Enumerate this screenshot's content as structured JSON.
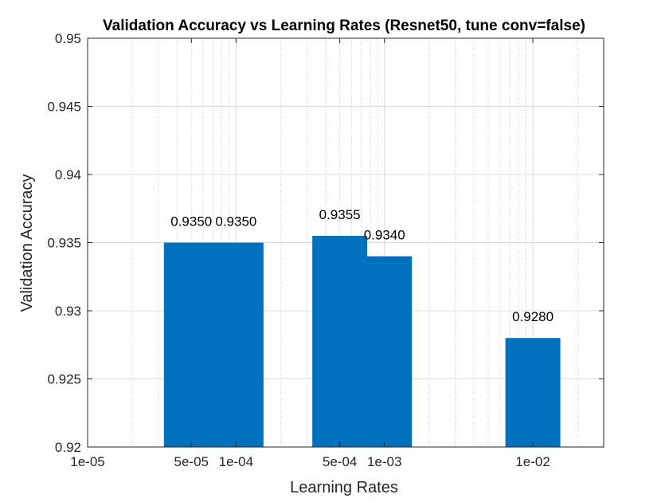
{
  "chart_data": {
    "type": "bar",
    "title": "Validation Accuracy vs Learning Rates (Resnet50, tune conv=false)",
    "xlabel": "Learning Rates",
    "ylabel": "Validation Accuracy",
    "x_scale": "log",
    "xlim": [
      1e-05,
      0.03
    ],
    "ylim": [
      0.92,
      0.95
    ],
    "grid": true,
    "minor_grid_x": true,
    "bar_color": "#0072BD",
    "x": [
      5e-05,
      0.0001,
      0.0005,
      0.001,
      0.01
    ],
    "values": [
      0.935,
      0.935,
      0.9355,
      0.934,
      0.928
    ],
    "data_labels": [
      "0.9350",
      "0.9350",
      "0.9355",
      "0.9340",
      "0.9280"
    ],
    "x_ticks": [
      1e-05,
      5e-05,
      0.0001,
      0.0005,
      0.001,
      0.01
    ],
    "x_tick_labels": [
      "1e-05",
      "5e-05",
      "1e-04",
      "5e-04",
      "1e-03",
      "1e-02"
    ],
    "y_ticks": [
      0.92,
      0.925,
      0.93,
      0.935,
      0.94,
      0.945,
      0.95
    ],
    "y_tick_labels": [
      "0.92",
      "0.925",
      "0.93",
      "0.935",
      "0.94",
      "0.945",
      "0.95"
    ]
  }
}
